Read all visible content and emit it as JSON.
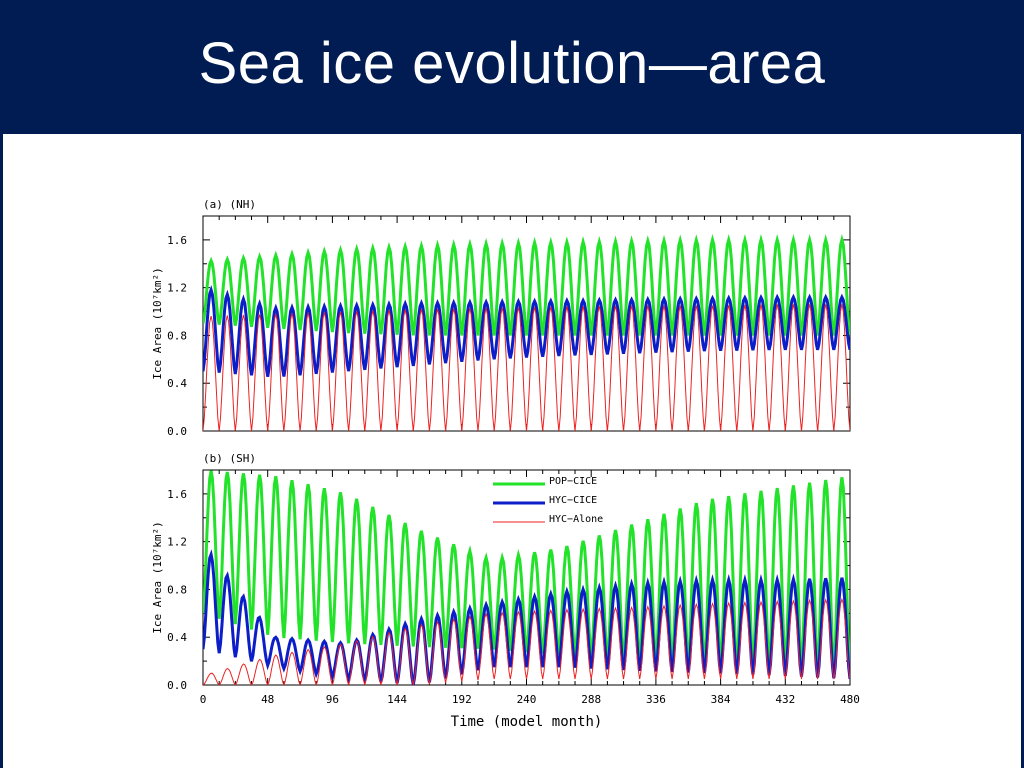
{
  "slide": {
    "title": "Sea ice evolution—area"
  },
  "colors": {
    "header_bg": "#001c52",
    "pop_cice": "#22e22a",
    "hyc_cice": "#0b1ec8",
    "hyc_alone": "#ee2222"
  },
  "chart_data": [
    {
      "type": "line",
      "panel_label": "(a) (NH)",
      "ylabel": "Ice Area (10⁷km²)",
      "xlim": [
        0,
        480
      ],
      "ylim": [
        0.0,
        1.8
      ],
      "yticks": [
        "0.0",
        "0.4",
        "0.8",
        "1.2",
        "1.6"
      ],
      "grid": false,
      "series": [
        {
          "name": "POP−CICE",
          "summer_min": [
            0.9,
            0.86,
            0.82,
            0.8,
            0.8,
            0.8,
            0.8,
            0.8,
            0.8,
            0.8
          ],
          "winter_max": [
            1.42,
            1.47,
            1.52,
            1.55,
            1.57,
            1.58,
            1.59,
            1.6,
            1.6,
            1.6
          ]
        },
        {
          "name": "HYC−CICE",
          "summer_min": [
            0.5,
            0.45,
            0.5,
            0.55,
            0.6,
            0.63,
            0.65,
            0.67,
            0.68,
            0.68
          ],
          "winter_max": [
            1.2,
            1.03,
            1.05,
            1.07,
            1.08,
            1.09,
            1.1,
            1.11,
            1.12,
            1.12
          ]
        },
        {
          "name": "HYC−Alone",
          "summer_min": [
            0.0,
            0.0,
            0.0,
            0.0,
            0.0,
            0.0,
            0.0,
            0.0,
            0.0,
            0.0
          ],
          "winter_max": [
            0.96,
            0.98,
            1.0,
            1.02,
            1.03,
            1.04,
            1.05,
            1.05,
            1.06,
            1.06
          ]
        }
      ]
    },
    {
      "type": "line",
      "panel_label": "(b) (SH)",
      "ylabel": "Ice Area (10⁷km²)",
      "xlabel": "Time (model month)",
      "xlim": [
        0,
        480
      ],
      "ylim": [
        0.0,
        1.8
      ],
      "xticks": [
        "0",
        "48",
        "96",
        "144",
        "192",
        "240",
        "288",
        "336",
        "384",
        "432",
        "480"
      ],
      "yticks": [
        "0.0",
        "0.4",
        "0.8",
        "1.2",
        "1.6"
      ],
      "legend": {
        "placement": "top-right",
        "entries": [
          "POP−CICE",
          "HYC−CICE",
          "HYC−Alone"
        ]
      },
      "grid": false,
      "series": [
        {
          "name": "POP−CICE",
          "summer_min": [
            0.6,
            0.4,
            0.35,
            0.32,
            0.3,
            0.25,
            0.2,
            0.15,
            0.15,
            0.1
          ],
          "winter_max": [
            1.8,
            1.75,
            1.6,
            1.3,
            1.05,
            1.15,
            1.35,
            1.55,
            1.65,
            1.75
          ]
        },
        {
          "name": "HYC−CICE",
          "summer_min": [
            0.3,
            0.15,
            0.05,
            0.0,
            0.15,
            0.15,
            0.12,
            0.1,
            0.08,
            0.05
          ],
          "winter_max": [
            1.18,
            0.4,
            0.35,
            0.55,
            0.68,
            0.78,
            0.85,
            0.88,
            0.88,
            0.9
          ]
        },
        {
          "name": "HYC−Alone",
          "summer_min": [
            0.0,
            0.0,
            0.0,
            0.0,
            0.05,
            0.05,
            0.05,
            0.05,
            0.05,
            0.05
          ],
          "winter_max": [
            0.08,
            0.25,
            0.35,
            0.5,
            0.6,
            0.63,
            0.65,
            0.68,
            0.7,
            0.72
          ]
        }
      ]
    }
  ]
}
